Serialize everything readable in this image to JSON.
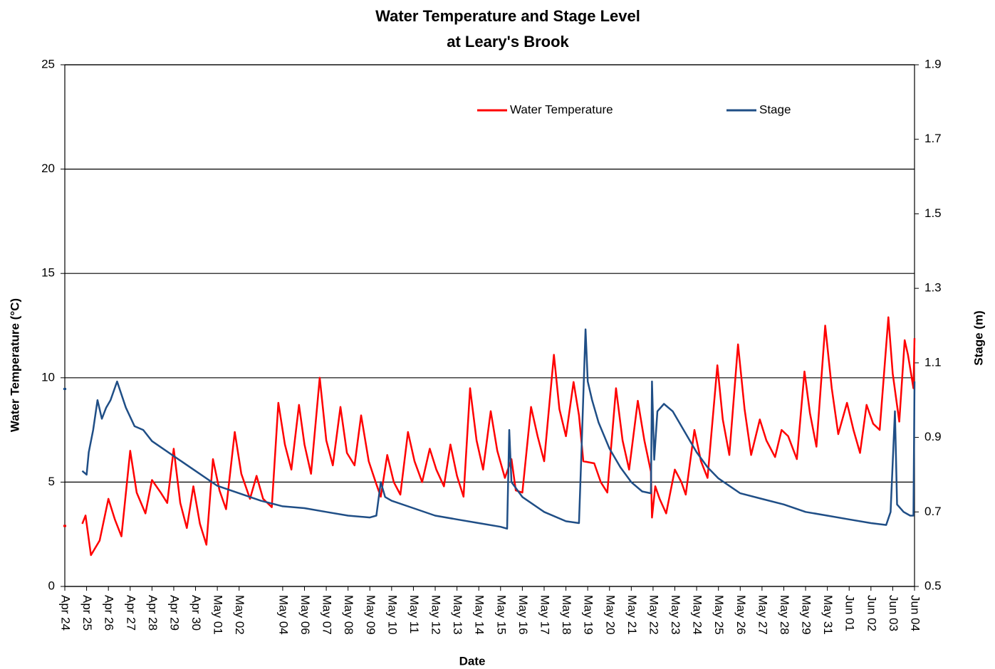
{
  "chart_data": {
    "type": "line",
    "title_lines": [
      "Water Temperature and Stage Level",
      "at Leary's Brook"
    ],
    "x_label": "Date",
    "y_label": "Water Temperature (°C)",
    "y2_label": "Stage (m)",
    "xlim": [
      0,
      39
    ],
    "xticks": [
      {
        "value": 0,
        "label": "Apr 24"
      },
      {
        "value": 1,
        "label": "Apr 25"
      },
      {
        "value": 2,
        "label": "Apr 26"
      },
      {
        "value": 3,
        "label": "Apr 27"
      },
      {
        "value": 4,
        "label": "Apr 28"
      },
      {
        "value": 5,
        "label": "Apr 29"
      },
      {
        "value": 6,
        "label": "Apr 30"
      },
      {
        "value": 7,
        "label": "May 01"
      },
      {
        "value": 8,
        "label": "May 02"
      },
      {
        "value": 10,
        "label": "May 04"
      },
      {
        "value": 11,
        "label": "May 06"
      },
      {
        "value": 12,
        "label": "May 07"
      },
      {
        "value": 13,
        "label": "May 08"
      },
      {
        "value": 14,
        "label": "May 09"
      },
      {
        "value": 15,
        "label": "May 10"
      },
      {
        "value": 16,
        "label": "May 11"
      },
      {
        "value": 17,
        "label": "May 12"
      },
      {
        "value": 18,
        "label": "May 13"
      },
      {
        "value": 19,
        "label": "May 14"
      },
      {
        "value": 20,
        "label": "May 15"
      },
      {
        "value": 21,
        "label": "May 16"
      },
      {
        "value": 22,
        "label": "May 17"
      },
      {
        "value": 23,
        "label": "May 18"
      },
      {
        "value": 24,
        "label": "May 19"
      },
      {
        "value": 25,
        "label": "May 20"
      },
      {
        "value": 26,
        "label": "May 21"
      },
      {
        "value": 27,
        "label": "May 22"
      },
      {
        "value": 28,
        "label": "May 23"
      },
      {
        "value": 29,
        "label": "May 24"
      },
      {
        "value": 30,
        "label": "May 25"
      },
      {
        "value": 31,
        "label": "May 26"
      },
      {
        "value": 32,
        "label": "May 27"
      },
      {
        "value": 33,
        "label": "May 28"
      },
      {
        "value": 34,
        "label": "May 29"
      },
      {
        "value": 35,
        "label": "May 31"
      },
      {
        "value": 36,
        "label": "Jun 01"
      },
      {
        "value": 37,
        "label": "Jun 02"
      },
      {
        "value": 38,
        "label": "Jun 03"
      },
      {
        "value": 39,
        "label": "Jun 04"
      }
    ],
    "ylim": [
      0,
      25
    ],
    "yticks": [
      0,
      5,
      10,
      15,
      20,
      25
    ],
    "y2lim": [
      0.5,
      1.9
    ],
    "y2ticks": [
      0.5,
      0.7,
      0.9,
      1.1,
      1.3,
      1.5,
      1.7,
      1.9
    ],
    "grid": true,
    "series": [
      {
        "name": "Water Temperature",
        "color": "#ff0000",
        "x": [
          0,
          0.4,
          0.8,
          0.95,
          1.2,
          1.6,
          2.0,
          2.3,
          2.6,
          3.0,
          3.3,
          3.7,
          4.0,
          4.4,
          4.7,
          5.0,
          5.3,
          5.6,
          5.9,
          6.2,
          6.5,
          6.8,
          7.1,
          7.4,
          7.8,
          8.1,
          8.5,
          8.8,
          9.1,
          9.5,
          9.8,
          10.1,
          10.4,
          10.75,
          11.0,
          11.3,
          11.7,
          12.0,
          12.3,
          12.65,
          12.95,
          13.3,
          13.6,
          13.95,
          14.3,
          14.5,
          14.8,
          15.1,
          15.4,
          15.75,
          16.05,
          16.4,
          16.75,
          17.05,
          17.4,
          17.7,
          18.0,
          18.3,
          18.6,
          18.9,
          19.2,
          19.55,
          19.85,
          20.2,
          20.5,
          20.7,
          21.0,
          21.4,
          21.7,
          22.0,
          22.45,
          22.7,
          23.0,
          23.35,
          23.6,
          23.8,
          24.3,
          24.6,
          24.9,
          25.3,
          25.6,
          25.9,
          26.3,
          26.6,
          26.9,
          26.95,
          27.1,
          27.3,
          27.6,
          28.0,
          28.3,
          28.5,
          28.9,
          29.2,
          29.5,
          29.95,
          30.2,
          30.5,
          30.9,
          31.2,
          31.5,
          31.9,
          32.2,
          32.6,
          32.9,
          33.2,
          33.6,
          33.95,
          34.2,
          34.5,
          34.9,
          35.2,
          35.5,
          35.9,
          36.2,
          36.5,
          36.8,
          37.1,
          37.4,
          37.8,
          38.0,
          38.3,
          38.55,
          38.7,
          38.95,
          39.0
        ],
        "values": [
          2.9,
          null,
          3.0,
          3.4,
          1.5,
          2.2,
          4.2,
          3.2,
          2.4,
          6.5,
          4.5,
          3.5,
          5.1,
          4.5,
          4.0,
          6.6,
          4.0,
          2.8,
          4.8,
          3.0,
          2.0,
          6.1,
          4.6,
          3.7,
          7.4,
          5.4,
          4.2,
          5.3,
          4.2,
          3.8,
          8.8,
          6.8,
          5.6,
          8.7,
          6.8,
          5.4,
          10.0,
          7.0,
          5.8,
          8.6,
          6.4,
          5.8,
          8.2,
          6.0,
          4.9,
          4.3,
          6.3,
          5.0,
          4.4,
          7.4,
          6.0,
          5.0,
          6.6,
          5.6,
          4.8,
          6.8,
          5.3,
          4.3,
          9.5,
          7.0,
          5.6,
          8.4,
          6.5,
          5.2,
          6.1,
          4.6,
          4.5,
          8.6,
          7.2,
          6.0,
          11.1,
          8.5,
          7.2,
          9.8,
          8.2,
          6.0,
          5.9,
          5.0,
          4.5,
          9.5,
          7.0,
          5.6,
          8.9,
          7.0,
          5.5,
          3.3,
          4.8,
          4.2,
          3.5,
          5.6,
          5.0,
          4.4,
          7.5,
          6.0,
          5.2,
          10.6,
          8.0,
          6.3,
          11.6,
          8.5,
          6.3,
          8.0,
          7.0,
          6.2,
          7.5,
          7.2,
          6.1,
          10.3,
          8.3,
          6.7,
          12.5,
          9.5,
          7.3,
          8.8,
          7.5,
          6.4,
          8.7,
          7.8,
          7.5,
          12.9,
          10.2,
          7.9,
          11.8,
          11.1,
          9.5,
          11.9
        ]
      },
      {
        "name": "Stage",
        "color": "#1f4e86",
        "axis": "y2",
        "x": [
          0,
          0.4,
          0.8,
          1.0,
          1.1,
          1.3,
          1.5,
          1.7,
          1.9,
          2.1,
          2.4,
          2.8,
          3.2,
          3.6,
          4.0,
          5.0,
          6.0,
          7.0,
          8.0,
          9.0,
          10.0,
          11.0,
          12.0,
          13.0,
          14.0,
          14.3,
          14.5,
          14.7,
          15.0,
          16.0,
          17.0,
          18.0,
          19.0,
          20.0,
          20.3,
          20.4,
          20.5,
          21.0,
          22.0,
          23.0,
          23.6,
          23.7,
          23.9,
          24.0,
          24.2,
          24.5,
          25.0,
          25.5,
          26.0,
          26.5,
          26.9,
          26.95,
          27.05,
          27.2,
          27.5,
          27.9,
          28.5,
          29.0,
          29.5,
          30.0,
          31.0,
          32.0,
          33.0,
          34.0,
          35.0,
          36.0,
          37.0,
          37.7,
          37.9,
          38.1,
          38.2,
          38.5,
          38.8,
          38.95,
          39.0
        ],
        "values": [
          1.03,
          null,
          0.81,
          0.8,
          0.86,
          0.92,
          1.0,
          0.95,
          0.98,
          1.0,
          1.05,
          0.98,
          0.93,
          0.92,
          0.89,
          0.85,
          0.81,
          0.77,
          0.75,
          0.73,
          0.715,
          0.71,
          0.7,
          0.69,
          0.685,
          0.69,
          0.78,
          0.74,
          0.73,
          0.71,
          0.69,
          0.68,
          0.67,
          0.66,
          0.655,
          0.92,
          0.78,
          0.74,
          0.7,
          0.675,
          0.67,
          0.84,
          1.19,
          1.05,
          1.0,
          0.94,
          0.87,
          0.82,
          0.78,
          0.755,
          0.75,
          1.05,
          0.84,
          0.97,
          0.99,
          0.97,
          0.91,
          0.86,
          0.82,
          0.79,
          0.75,
          0.735,
          0.72,
          0.7,
          0.69,
          0.68,
          0.67,
          0.665,
          0.7,
          0.97,
          0.72,
          0.7,
          0.69,
          0.69,
          1.05
        ]
      }
    ]
  }
}
